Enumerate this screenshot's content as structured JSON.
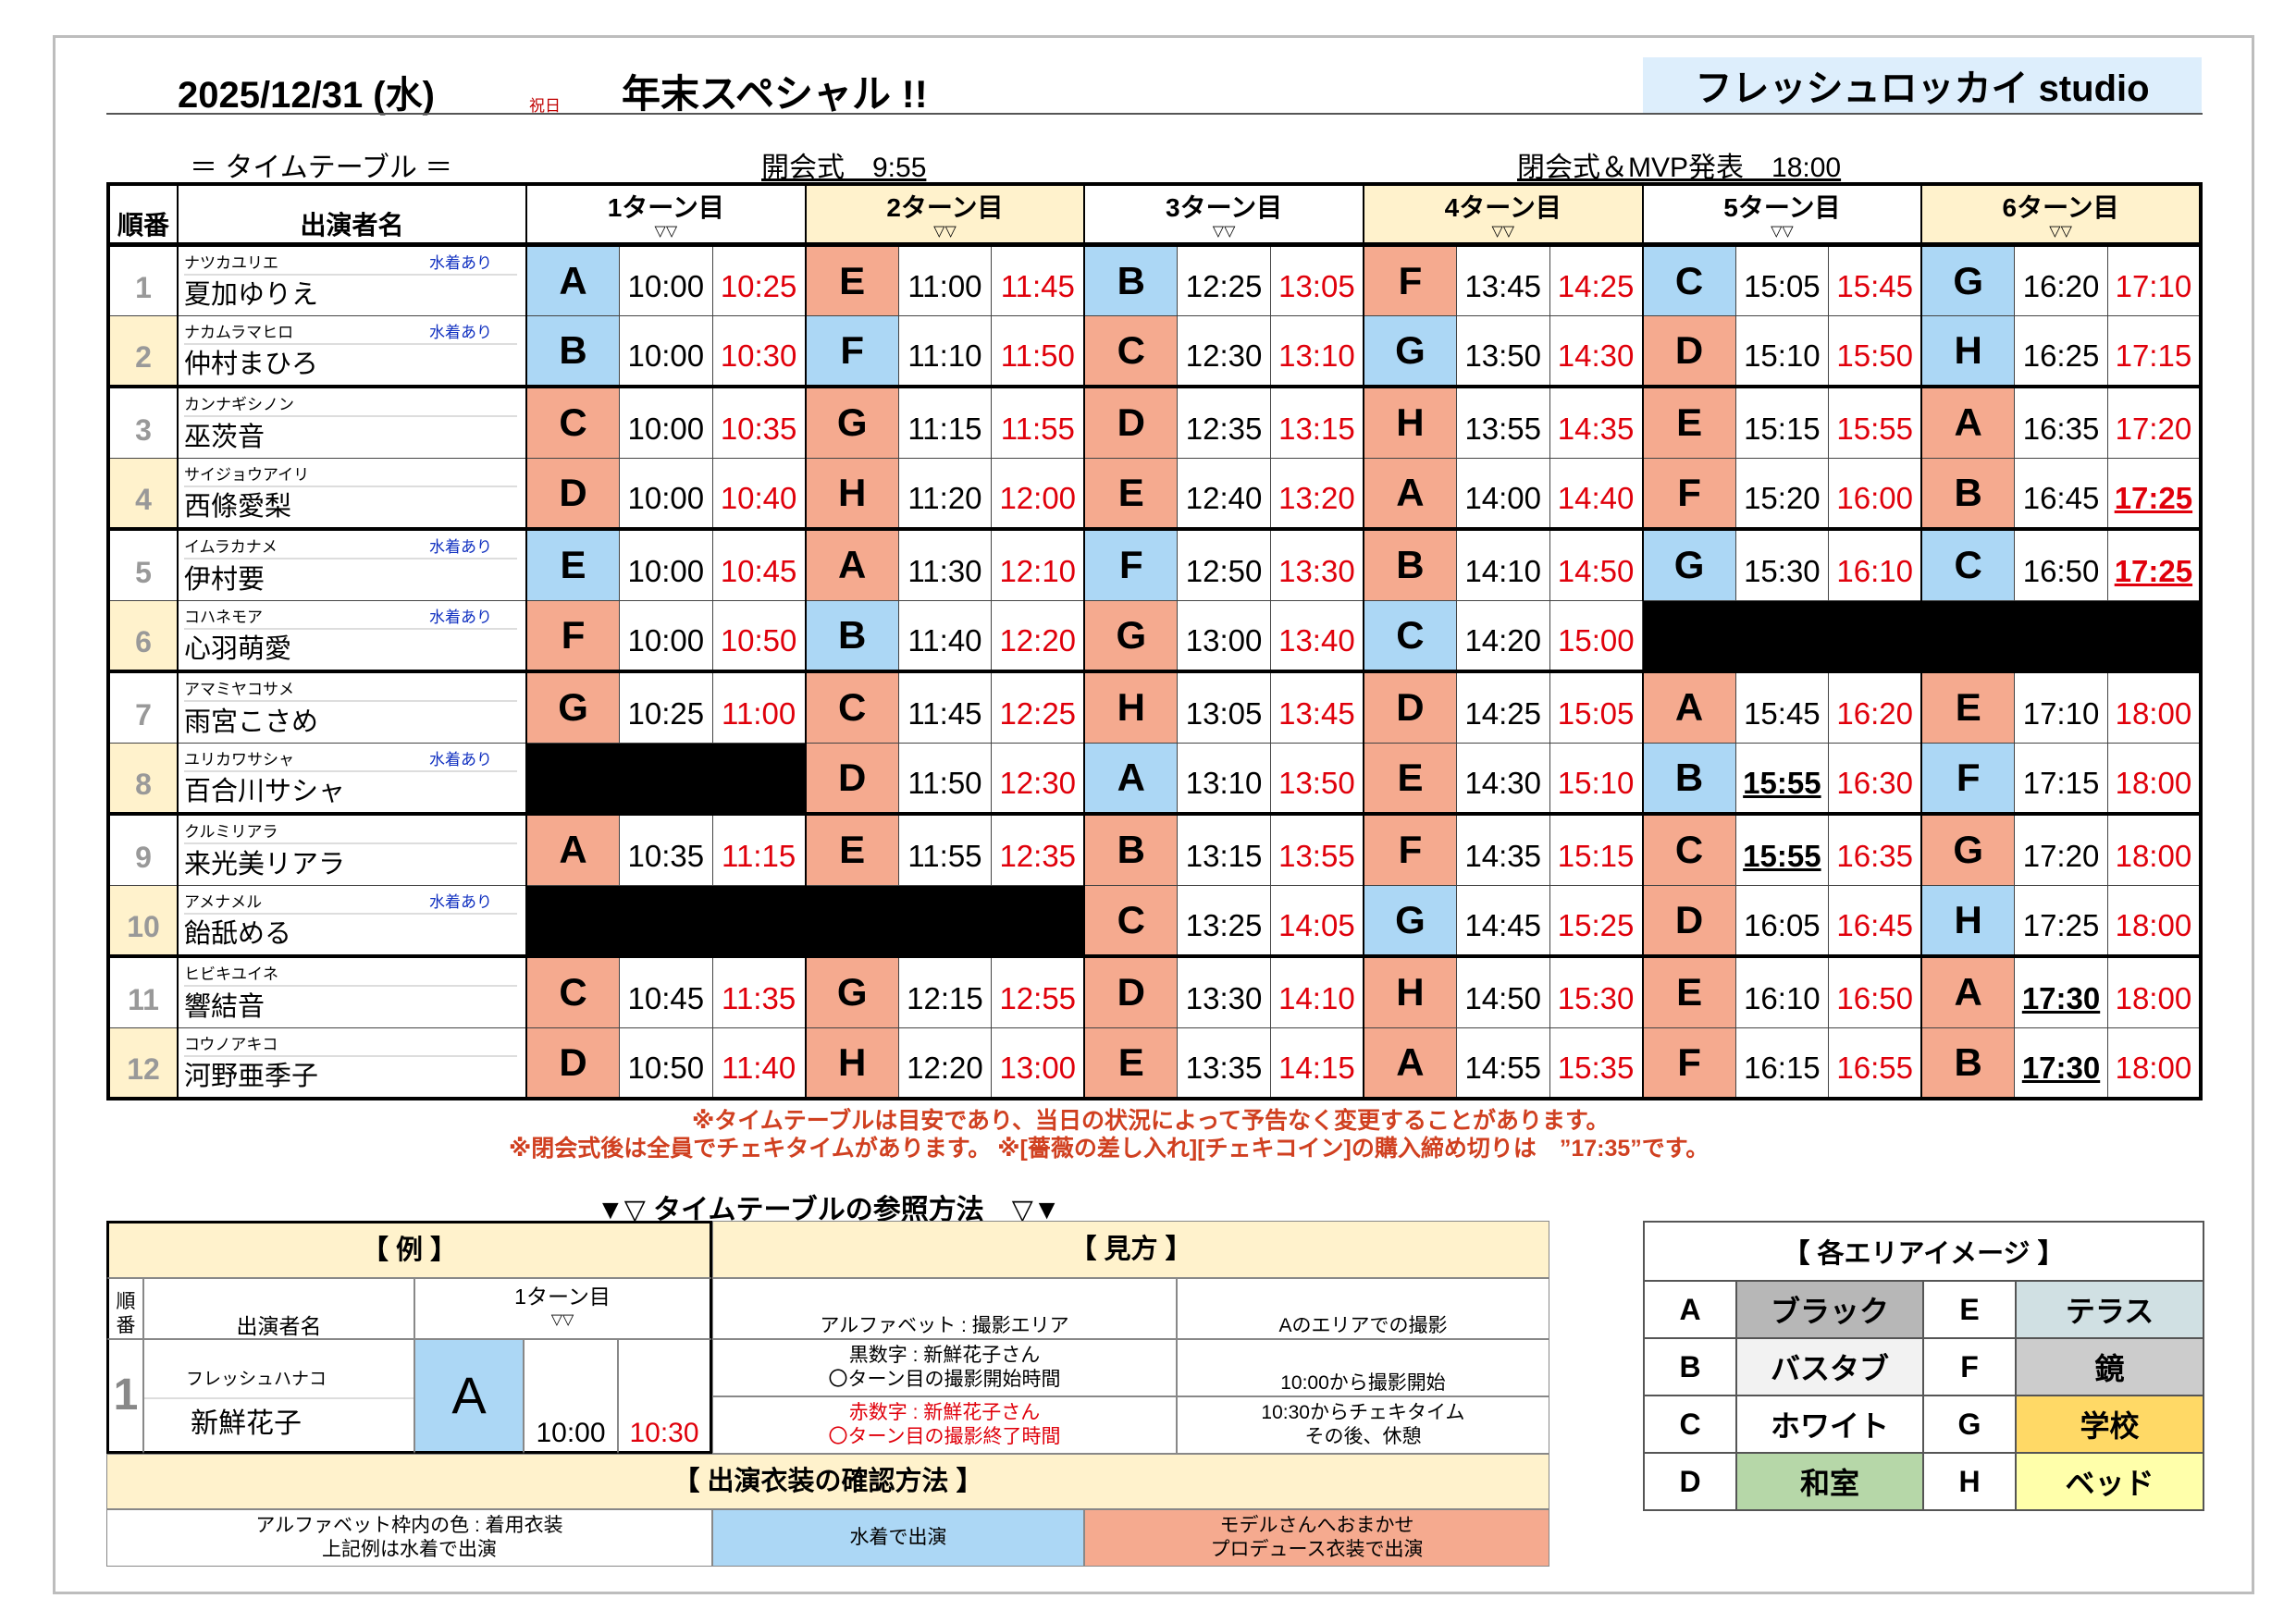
{
  "header": {
    "date": "2025/12/31 (水)",
    "holiday": "祝日",
    "event": "年末スペシャル !!",
    "studio": "フレッシュロッカイ studio",
    "timetable_label": "＝ タイムテーブル ＝",
    "opening": "開会式　9:55",
    "closing": "閉会式＆MVP発表　18:00"
  },
  "table": {
    "col_order": "順番",
    "col_name": "出演者名",
    "turns": [
      "1ターン目",
      "2ターン目",
      "3ターン目",
      "4ターン目",
      "5ターン目",
      "6ターン目"
    ],
    "turn_marker": "▽▽",
    "swim_label": "水着あり"
  },
  "colors": {
    "swimsuit": "#acd7f5",
    "producer": "#f5aa8f",
    "end_time": "#e0000b",
    "highlight": "#fff2cc"
  },
  "rows": [
    {
      "num": "1",
      "kana": "ナツカユリエ",
      "name": "夏加ゆりえ",
      "swim": true,
      "turns": [
        [
          "A",
          "b",
          "10:00",
          "10:25"
        ],
        [
          "E",
          "s",
          "11:00",
          "11:45"
        ],
        [
          "B",
          "b",
          "12:25",
          "13:05"
        ],
        [
          "F",
          "s",
          "13:45",
          "14:25"
        ],
        [
          "C",
          "b",
          "15:05",
          "15:45"
        ],
        [
          "G",
          "b",
          "16:20",
          "17:10"
        ]
      ]
    },
    {
      "num": "2",
      "kana": "ナカムラマヒロ",
      "name": "仲村まひろ",
      "swim": true,
      "turns": [
        [
          "B",
          "b",
          "10:00",
          "10:30"
        ],
        [
          "F",
          "b",
          "11:10",
          "11:50"
        ],
        [
          "C",
          "s",
          "12:30",
          "13:10"
        ],
        [
          "G",
          "b",
          "13:50",
          "14:30"
        ],
        [
          "D",
          "s",
          "15:10",
          "15:50"
        ],
        [
          "H",
          "b",
          "16:25",
          "17:15"
        ]
      ]
    },
    {
      "num": "3",
      "kana": "カンナギシノン",
      "name": "巫茨音",
      "swim": false,
      "turns": [
        [
          "C",
          "s",
          "10:00",
          "10:35"
        ],
        [
          "G",
          "s",
          "11:15",
          "11:55"
        ],
        [
          "D",
          "s",
          "12:35",
          "13:15"
        ],
        [
          "H",
          "s",
          "13:55",
          "14:35"
        ],
        [
          "E",
          "s",
          "15:15",
          "15:55"
        ],
        [
          "A",
          "s",
          "16:35",
          "17:20"
        ]
      ]
    },
    {
      "num": "4",
      "kana": "サイジョウアイリ",
      "name": "西條愛梨",
      "swim": false,
      "turns": [
        [
          "D",
          "s",
          "10:00",
          "10:40"
        ],
        [
          "H",
          "s",
          "11:20",
          "12:00"
        ],
        [
          "E",
          "s",
          "12:40",
          "13:20"
        ],
        [
          "A",
          "s",
          "14:00",
          "14:40"
        ],
        [
          "F",
          "s",
          "15:20",
          "16:00"
        ],
        [
          "B",
          "s",
          "16:45",
          "17:25",
          "",
          "u"
        ]
      ]
    },
    {
      "num": "5",
      "kana": "イムラカナメ",
      "name": "伊村要",
      "swim": true,
      "turns": [
        [
          "E",
          "b",
          "10:00",
          "10:45"
        ],
        [
          "A",
          "s",
          "11:30",
          "12:10"
        ],
        [
          "F",
          "b",
          "12:50",
          "13:30"
        ],
        [
          "B",
          "s",
          "14:10",
          "14:50"
        ],
        [
          "G",
          "b",
          "15:30",
          "16:10"
        ],
        [
          "C",
          "b",
          "16:50",
          "17:25",
          "",
          "u"
        ]
      ]
    },
    {
      "num": "6",
      "kana": "コハネモア",
      "name": "心羽萌愛",
      "swim": true,
      "turns": [
        [
          "F",
          "s",
          "10:00",
          "10:50"
        ],
        [
          "B",
          "b",
          "11:40",
          "12:20"
        ],
        [
          "G",
          "s",
          "13:00",
          "13:40"
        ],
        [
          "C",
          "b",
          "14:20",
          "15:00"
        ],
        null,
        null
      ]
    },
    {
      "num": "7",
      "kana": "アマミヤコサメ",
      "name": "雨宮こさめ",
      "swim": false,
      "turns": [
        [
          "G",
          "s",
          "10:25",
          "11:00"
        ],
        [
          "C",
          "s",
          "11:45",
          "12:25"
        ],
        [
          "H",
          "s",
          "13:05",
          "13:45"
        ],
        [
          "D",
          "s",
          "14:25",
          "15:05"
        ],
        [
          "A",
          "s",
          "15:45",
          "16:20"
        ],
        [
          "E",
          "s",
          "17:10",
          "18:00"
        ]
      ]
    },
    {
      "num": "8",
      "kana": "ユリカワサシャ",
      "name": "百合川サシャ",
      "swim": true,
      "turns": [
        null,
        [
          "D",
          "s",
          "11:50",
          "12:30"
        ],
        [
          "A",
          "b",
          "13:10",
          "13:50"
        ],
        [
          "E",
          "s",
          "14:30",
          "15:10"
        ],
        [
          "B",
          "b",
          "15:55",
          "16:30",
          "u"
        ],
        [
          "F",
          "b",
          "17:15",
          "18:00"
        ]
      ]
    },
    {
      "num": "9",
      "kana": "クルミリアラ",
      "name": "来光美リアラ",
      "swim": false,
      "turns": [
        [
          "A",
          "s",
          "10:35",
          "11:15"
        ],
        [
          "E",
          "s",
          "11:55",
          "12:35"
        ],
        [
          "B",
          "s",
          "13:15",
          "13:55"
        ],
        [
          "F",
          "s",
          "14:35",
          "15:15"
        ],
        [
          "C",
          "s",
          "15:55",
          "16:35",
          "u"
        ],
        [
          "G",
          "s",
          "17:20",
          "18:00"
        ]
      ]
    },
    {
      "num": "10",
      "kana": "アメナメル",
      "name": "飴舐める",
      "swim": true,
      "turns": [
        null,
        null,
        [
          "C",
          "s",
          "13:25",
          "14:05"
        ],
        [
          "G",
          "b",
          "14:45",
          "15:25"
        ],
        [
          "D",
          "s",
          "16:05",
          "16:45"
        ],
        [
          "H",
          "b",
          "17:25",
          "18:00"
        ]
      ]
    },
    {
      "num": "11",
      "kana": "ヒビキユイネ",
      "name": "響結音",
      "swim": false,
      "turns": [
        [
          "C",
          "s",
          "10:45",
          "11:35"
        ],
        [
          "G",
          "s",
          "12:15",
          "12:55"
        ],
        [
          "D",
          "s",
          "13:30",
          "14:10"
        ],
        [
          "H",
          "s",
          "14:50",
          "15:30"
        ],
        [
          "E",
          "s",
          "16:10",
          "16:50"
        ],
        [
          "A",
          "s",
          "17:30",
          "18:00",
          "u"
        ]
      ]
    },
    {
      "num": "12",
      "kana": "コウノアキコ",
      "name": "河野亜季子",
      "swim": false,
      "turns": [
        [
          "D",
          "s",
          "10:50",
          "11:40"
        ],
        [
          "H",
          "s",
          "12:20",
          "13:00"
        ],
        [
          "E",
          "s",
          "13:35",
          "14:15"
        ],
        [
          "A",
          "s",
          "14:55",
          "15:35"
        ],
        [
          "F",
          "s",
          "16:15",
          "16:55"
        ],
        [
          "B",
          "s",
          "17:30",
          "18:00",
          "u"
        ]
      ]
    }
  ],
  "notes": [
    "※タイムテーブルは目安であり、当日の状況によって予告なく変更することがあります。",
    "※閉会式後は全員でチェキタイムがあります。 ※[薔薇の差し入れ][チェキコイン]の購入締め切りは　”17:35”です。"
  ],
  "reference": {
    "title": "▼▽ タイムテーブルの参照方法　▽▼",
    "example": {
      "title": "【 例 】",
      "col_order": "順番",
      "col_name": "出演者名",
      "turn": "1ターン目",
      "marker": "▽▽",
      "num": "1",
      "kana": "フレッシュハナコ",
      "name": "新鮮花子",
      "letter": "A",
      "start": "10:00",
      "end": "10:30"
    },
    "howto": {
      "title": "【 見方 】",
      "r1a": "アルファベット : 撮影エリア",
      "r1b": "Aのエリアでの撮影",
      "r2a1": "黒数字 : 新鮮花子さん",
      "r2a2": "〇ターン目の撮影開始時間",
      "r2b": "10:00から撮影開始",
      "r3a1": "赤数字 : 新鮮花子さん",
      "r3a2": "〇ターン目の撮影終了時間",
      "r3b1": "10:30からチェキタイム",
      "r3b2": "その後、休憩"
    },
    "costume": {
      "title": "【 出演衣装の確認方法 】",
      "c1a": "アルファベット枠内の色 : 着用衣装",
      "c1b": "上記例は水着で出演",
      "c2": "水着で出演",
      "c3a": "モデルさんへおまかせ",
      "c3b": "プロデュース衣装で出演"
    }
  },
  "areas": {
    "title": "【 各エリアイメージ 】",
    "items": [
      {
        "key": "A",
        "name": "ブラック",
        "color": "#b7b7b7"
      },
      {
        "key": "B",
        "name": "バスタブ",
        "color": "#f2f2f2"
      },
      {
        "key": "C",
        "name": "ホワイト",
        "color": "#ffffff"
      },
      {
        "key": "D",
        "name": "和室",
        "color": "#b6d7a8"
      },
      {
        "key": "E",
        "name": "テラス",
        "color": "#d0e0e3"
      },
      {
        "key": "F",
        "name": "鏡",
        "color": "#cccccc"
      },
      {
        "key": "G",
        "name": "学校",
        "color": "#ffd966"
      },
      {
        "key": "H",
        "name": "ベッド",
        "color": "#ffffaa"
      }
    ]
  }
}
